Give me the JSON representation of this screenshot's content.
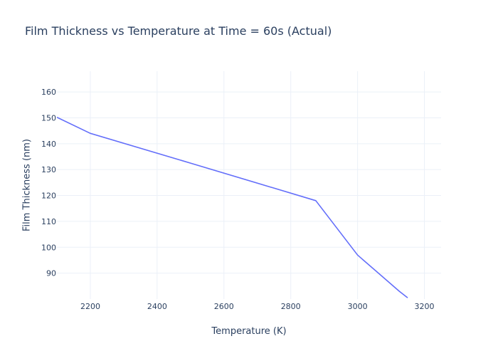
{
  "chart_data": {
    "type": "line",
    "title": "Film Thickness vs Temperature at Time = 60s (Actual)",
    "xlabel": "Temperature (K)",
    "ylabel": "Film Thickness (nm)",
    "xlim": [
      2100,
      3250
    ],
    "ylim": [
      80,
      168
    ],
    "xticks": [
      2200,
      2400,
      2600,
      2800,
      3000,
      3200
    ],
    "yticks": [
      90,
      100,
      110,
      120,
      130,
      140,
      150,
      160
    ],
    "grid": true,
    "series": [
      {
        "color": "#636efa",
        "x": [
          2100,
          2200,
          2500,
          2875,
          3000,
          3125,
          3150
        ],
        "y": [
          150.2,
          144,
          132.5,
          118,
          97,
          83,
          80.5
        ]
      }
    ]
  }
}
